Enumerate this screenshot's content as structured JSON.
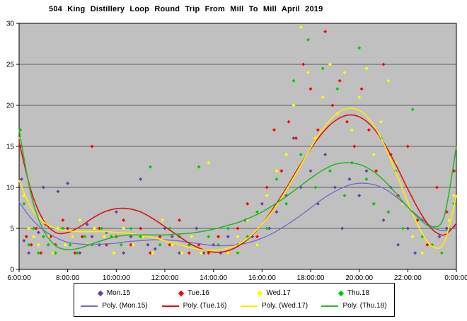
{
  "chart_data": {
    "type": "scatter",
    "title": "504 King Distillery Loop Round Trip From Mill To Mill April 2019",
    "plot_bg": "#c0c0c0",
    "grid": "horizontal",
    "legend_position": "bottom",
    "x_axis": {
      "min": 6,
      "max": 24,
      "tick_hours": [
        6,
        8,
        10,
        12,
        14,
        16,
        18,
        20,
        22,
        24
      ],
      "ticks": [
        "6:00:00",
        "8:00:00",
        "10:00:00",
        "12:00:00",
        "14:00:00",
        "16:00:00",
        "18:00:00",
        "20:00:00",
        "22:00:00",
        "0:00:00"
      ]
    },
    "y_axis": {
      "min": 0,
      "max": 30,
      "ticks": [
        0,
        5,
        10,
        15,
        20,
        25,
        30
      ]
    },
    "series": [
      {
        "name": "Mon.15",
        "color": "#6a3fa0",
        "marker": "diamond",
        "points": [
          [
            6.1,
            11
          ],
          [
            6.2,
            3.5
          ],
          [
            6.4,
            2
          ],
          [
            6.6,
            5
          ],
          [
            6.8,
            4.5
          ],
          [
            7.0,
            10
          ],
          [
            7.2,
            3
          ],
          [
            7.4,
            2
          ],
          [
            7.6,
            9.5
          ],
          [
            7.8,
            5
          ],
          [
            8.0,
            10.5
          ],
          [
            8.2,
            4
          ],
          [
            8.5,
            2
          ],
          [
            8.8,
            5.5
          ],
          [
            9.0,
            4
          ],
          [
            9.3,
            3
          ],
          [
            9.6,
            4.5
          ],
          [
            10.0,
            7
          ],
          [
            10.3,
            2
          ],
          [
            10.6,
            4
          ],
          [
            11.0,
            11
          ],
          [
            11.3,
            3
          ],
          [
            11.6,
            2.5
          ],
          [
            12.0,
            5
          ],
          [
            12.3,
            4
          ],
          [
            12.6,
            2
          ],
          [
            13.0,
            3
          ],
          [
            13.3,
            5
          ],
          [
            13.6,
            2
          ],
          [
            14.0,
            3
          ],
          [
            14.3,
            2
          ],
          [
            14.6,
            4
          ],
          [
            15.0,
            3
          ],
          [
            15.3,
            6
          ],
          [
            15.6,
            4
          ],
          [
            16.0,
            8
          ],
          [
            16.3,
            5
          ],
          [
            16.6,
            7
          ],
          [
            17.0,
            9
          ],
          [
            17.3,
            16
          ],
          [
            17.6,
            10
          ],
          [
            18.0,
            12
          ],
          [
            18.3,
            8
          ],
          [
            18.6,
            14
          ],
          [
            19.0,
            10
          ],
          [
            19.3,
            5
          ],
          [
            19.6,
            11
          ],
          [
            20.0,
            9
          ],
          [
            20.3,
            12
          ],
          [
            20.6,
            8
          ],
          [
            21.0,
            6
          ],
          [
            21.3,
            10
          ],
          [
            21.6,
            3
          ],
          [
            22.0,
            5
          ],
          [
            22.3,
            2
          ],
          [
            22.6,
            6
          ],
          [
            23.0,
            3
          ],
          [
            23.3,
            4
          ],
          [
            23.6,
            5
          ],
          [
            23.9,
            12
          ]
        ]
      },
      {
        "name": "Tue.16",
        "color": "#ff0000",
        "marker": "diamond",
        "points": [
          [
            6.05,
            15
          ],
          [
            6.3,
            4
          ],
          [
            6.5,
            3
          ],
          [
            6.7,
            5
          ],
          [
            6.9,
            2
          ],
          [
            7.1,
            5.5
          ],
          [
            7.3,
            4
          ],
          [
            7.5,
            3
          ],
          [
            7.8,
            6
          ],
          [
            8.0,
            5
          ],
          [
            8.3,
            2
          ],
          [
            8.6,
            4
          ],
          [
            9.0,
            15
          ],
          [
            9.3,
            5
          ],
          [
            9.6,
            3
          ],
          [
            10.0,
            4
          ],
          [
            10.3,
            6
          ],
          [
            10.6,
            3
          ],
          [
            11.0,
            5
          ],
          [
            11.4,
            2
          ],
          [
            11.8,
            4
          ],
          [
            12.2,
            3
          ],
          [
            12.6,
            6
          ],
          [
            13.0,
            2
          ],
          [
            13.4,
            3
          ],
          [
            13.8,
            2
          ],
          [
            14.2,
            4
          ],
          [
            14.6,
            2
          ],
          [
            15.0,
            5
          ],
          [
            15.4,
            8
          ],
          [
            15.8,
            4
          ],
          [
            16.2,
            10
          ],
          [
            16.5,
            17
          ],
          [
            16.8,
            12
          ],
          [
            17.1,
            18
          ],
          [
            17.4,
            16
          ],
          [
            17.7,
            25
          ],
          [
            18.0,
            22
          ],
          [
            18.3,
            17
          ],
          [
            18.6,
            29
          ],
          [
            18.9,
            20
          ],
          [
            19.2,
            23
          ],
          [
            19.5,
            18
          ],
          [
            19.8,
            15
          ],
          [
            20.1,
            22
          ],
          [
            20.4,
            17
          ],
          [
            20.7,
            12
          ],
          [
            21.0,
            25
          ],
          [
            21.3,
            14
          ],
          [
            21.6,
            9
          ],
          [
            22.0,
            15
          ],
          [
            22.4,
            6
          ],
          [
            22.8,
            3
          ],
          [
            23.2,
            10
          ],
          [
            23.6,
            7
          ],
          [
            23.9,
            12
          ]
        ]
      },
      {
        "name": "Wed.17",
        "color": "#ffff00",
        "marker": "diamond",
        "points": [
          [
            6.05,
            16
          ],
          [
            6.2,
            9
          ],
          [
            6.4,
            5
          ],
          [
            6.6,
            4
          ],
          [
            6.8,
            3
          ],
          [
            7.0,
            6
          ],
          [
            7.2,
            4
          ],
          [
            7.4,
            2
          ],
          [
            7.6,
            5
          ],
          [
            7.9,
            3
          ],
          [
            8.2,
            4
          ],
          [
            8.5,
            6
          ],
          [
            8.8,
            3
          ],
          [
            9.1,
            5
          ],
          [
            9.5,
            4
          ],
          [
            9.9,
            2
          ],
          [
            10.3,
            5
          ],
          [
            10.7,
            3
          ],
          [
            11.1,
            4
          ],
          [
            11.5,
            2
          ],
          [
            11.9,
            6
          ],
          [
            12.3,
            3
          ],
          [
            12.7,
            2
          ],
          [
            13.1,
            4
          ],
          [
            13.5,
            2
          ],
          [
            13.8,
            13
          ],
          [
            14.2,
            3
          ],
          [
            14.6,
            2
          ],
          [
            15.0,
            4
          ],
          [
            15.4,
            6
          ],
          [
            15.8,
            3
          ],
          [
            16.2,
            9
          ],
          [
            16.6,
            12
          ],
          [
            17.0,
            14
          ],
          [
            17.3,
            20
          ],
          [
            17.6,
            29.5
          ],
          [
            17.9,
            24
          ],
          [
            18.2,
            16
          ],
          [
            18.5,
            21
          ],
          [
            18.8,
            25
          ],
          [
            19.1,
            19
          ],
          [
            19.4,
            24
          ],
          [
            19.7,
            17
          ],
          [
            20.0,
            21
          ],
          [
            20.3,
            24.5
          ],
          [
            20.6,
            14
          ],
          [
            20.9,
            18
          ],
          [
            21.2,
            23
          ],
          [
            21.5,
            13
          ],
          [
            21.8,
            8
          ],
          [
            22.2,
            4
          ],
          [
            22.6,
            2
          ],
          [
            23.0,
            3
          ],
          [
            23.4,
            2
          ],
          [
            23.7,
            6
          ],
          [
            23.9,
            9
          ]
        ]
      },
      {
        "name": "Thu.18",
        "color": "#00cc00",
        "marker": "diamond",
        "points": [
          [
            6.05,
            17
          ],
          [
            6.2,
            8
          ],
          [
            6.4,
            3
          ],
          [
            6.6,
            5
          ],
          [
            6.8,
            2
          ],
          [
            7.0,
            4
          ],
          [
            7.2,
            3
          ],
          [
            7.5,
            2
          ],
          [
            7.8,
            5
          ],
          [
            8.1,
            3
          ],
          [
            8.4,
            2
          ],
          [
            8.7,
            4
          ],
          [
            9.0,
            3
          ],
          [
            9.4,
            5
          ],
          [
            9.8,
            4
          ],
          [
            10.2,
            3
          ],
          [
            10.6,
            5
          ],
          [
            11.0,
            4
          ],
          [
            11.4,
            12.5
          ],
          [
            11.8,
            3
          ],
          [
            12.2,
            5
          ],
          [
            12.6,
            4
          ],
          [
            13.0,
            3
          ],
          [
            13.4,
            12.5
          ],
          [
            13.8,
            4
          ],
          [
            14.2,
            3
          ],
          [
            14.6,
            5
          ],
          [
            15.0,
            2
          ],
          [
            15.4,
            4
          ],
          [
            15.8,
            7
          ],
          [
            16.2,
            5
          ],
          [
            16.6,
            11
          ],
          [
            17.0,
            8
          ],
          [
            17.3,
            23
          ],
          [
            17.6,
            14
          ],
          [
            17.9,
            28
          ],
          [
            18.2,
            10
          ],
          [
            18.5,
            24.5
          ],
          [
            18.8,
            12
          ],
          [
            19.1,
            22
          ],
          [
            19.4,
            9
          ],
          [
            19.7,
            13
          ],
          [
            20.0,
            27
          ],
          [
            20.3,
            11
          ],
          [
            20.6,
            8
          ],
          [
            20.9,
            16
          ],
          [
            21.2,
            7
          ],
          [
            21.5,
            12
          ],
          [
            21.8,
            5
          ],
          [
            22.2,
            19.5
          ],
          [
            22.6,
            4
          ],
          [
            23.0,
            3
          ],
          [
            23.4,
            2
          ],
          [
            23.7,
            5
          ],
          [
            23.9,
            8
          ]
        ]
      }
    ],
    "poly_series": [
      {
        "name": "Poly. (Mon.15)",
        "color": "#7766cc",
        "x_start": 6,
        "x_step": 0.5,
        "y": [
          8.2,
          6.2,
          4.8,
          3.9,
          3.3,
          3.1,
          3.0,
          3.1,
          3.2,
          3.4,
          3.5,
          3.6,
          3.6,
          3.5,
          3.3,
          3.1,
          2.9,
          2.9,
          3.0,
          3.3,
          3.8,
          4.5,
          5.4,
          6.4,
          7.5,
          8.6,
          9.5,
          10.2,
          10.5,
          10.4,
          9.9,
          8.9,
          7.6,
          6.3,
          5.2,
          4.7,
          5.3
        ]
      },
      {
        "name": "Poly. (Tue.16)",
        "color": "#e01010",
        "x_start": 6,
        "x_step": 0.5,
        "y": [
          15.5,
          9.5,
          6.0,
          4.5,
          4.5,
          5.2,
          6.2,
          7.0,
          7.4,
          7.4,
          7.0,
          6.2,
          5.2,
          4.2,
          3.2,
          2.5,
          2.1,
          2.2,
          2.8,
          3.9,
          5.5,
          7.6,
          9.9,
          12.4,
          14.7,
          16.7,
          18.1,
          18.8,
          18.6,
          17.5,
          15.5,
          12.8,
          9.8,
          7.0,
          4.9,
          4.2,
          5.6
        ]
      },
      {
        "name": "Poly. (Wed.17)",
        "color": "#ffee00",
        "x_start": 6,
        "x_step": 0.5,
        "y": [
          10.8,
          7.5,
          5.8,
          5.0,
          4.7,
          4.6,
          4.6,
          4.6,
          4.5,
          4.4,
          4.2,
          3.9,
          3.5,
          3.1,
          2.7,
          2.4,
          2.3,
          2.5,
          3.0,
          4.0,
          5.5,
          7.4,
          9.7,
          12.2,
          14.8,
          17.1,
          18.8,
          19.6,
          19.4,
          18.0,
          15.4,
          11.9,
          8.2,
          4.9,
          2.8,
          3.3,
          9.0
        ]
      },
      {
        "name": "Poly. (Thu.18)",
        "color": "#2cb52c",
        "x_start": 6,
        "x_step": 0.5,
        "y": [
          17.0,
          9.0,
          4.8,
          2.9,
          2.4,
          2.6,
          3.1,
          3.6,
          4.0,
          4.2,
          4.2,
          4.2,
          4.2,
          4.3,
          4.4,
          4.6,
          4.9,
          5.3,
          5.7,
          6.3,
          7.0,
          7.9,
          8.9,
          10.0,
          11.1,
          12.1,
          12.8,
          13.0,
          12.8,
          12.1,
          10.9,
          9.3,
          7.6,
          6.1,
          5.2,
          6.5,
          15.0
        ]
      }
    ]
  }
}
